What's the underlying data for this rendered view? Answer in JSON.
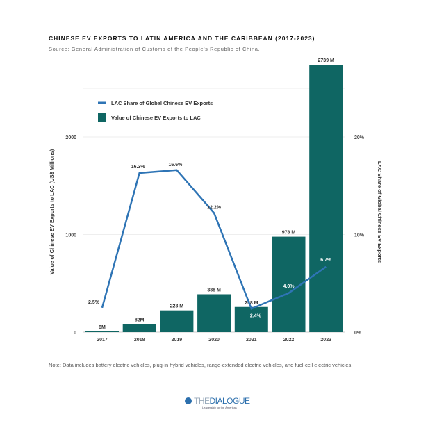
{
  "title": "CHINESE EV EXPORTS TO LATIN AMERICA AND THE CARIBBEAN (2017-2023)",
  "subtitle": "Source: General Administration of Customs of the People's Republic of China.",
  "note": "Note: Data includes battery electric vehicles, plug-in hybrid vehicles, range-extended electric vehicles, and fuel-cell electric vehicles.",
  "logo": {
    "the": "THE",
    "dialogue": "DIALOGUE",
    "tagline": "Leadership for the Americas"
  },
  "chart_data": {
    "type": "bar+line",
    "categories": [
      "2017",
      "2018",
      "2019",
      "2020",
      "2021",
      "2022",
      "2023"
    ],
    "series": [
      {
        "name": "Value of Chinese EV Exports to LAC",
        "type": "bar",
        "axis": "left",
        "values": [
          8,
          82,
          223,
          388,
          258,
          978,
          2739
        ],
        "labels": [
          "8M",
          "82M",
          "223 M",
          "388 M",
          "258 M",
          "978 M",
          "2739 M"
        ],
        "color": "#0f6663"
      },
      {
        "name": "LAC Share of Global Chinese EV Exports",
        "type": "line",
        "axis": "right",
        "values": [
          2.5,
          16.3,
          16.6,
          12.2,
          2.4,
          4.0,
          6.7
        ],
        "labels": [
          "2.5%",
          "16.3%",
          "16.6%",
          "12.2%",
          "2.4%",
          "4.0%",
          "6.7%"
        ],
        "color": "#2e74b5"
      }
    ],
    "ylabel": "Value of Chinese EV Exports to LAC  (US$ Millions)",
    "y2label": "LAC Share of Global Chinese EV Exports",
    "ylim": [
      0,
      2739
    ],
    "y2lim": [
      0,
      27.39
    ],
    "yticks": [
      "0",
      "1000",
      "2000"
    ],
    "y2ticks": [
      "0%",
      "10%",
      "20%"
    ],
    "legend_position": "top-left",
    "grid": true
  }
}
